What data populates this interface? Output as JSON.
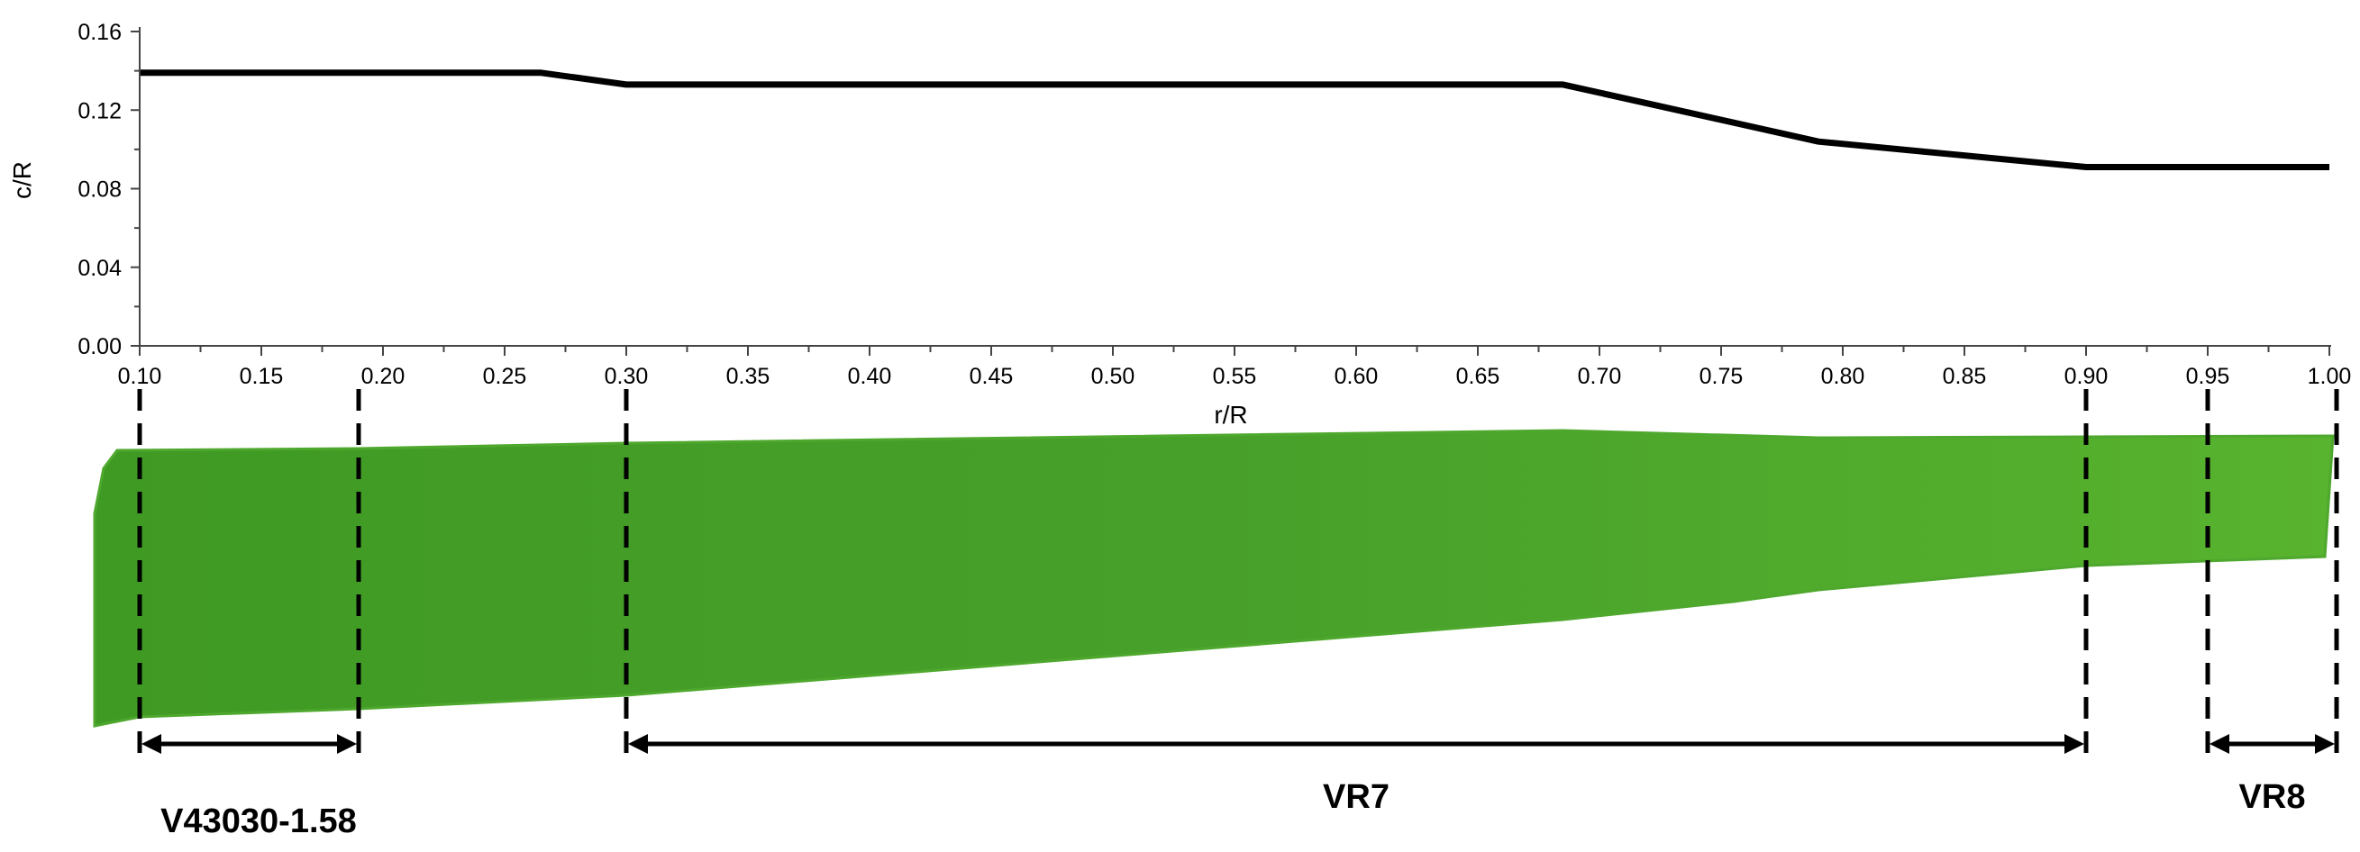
{
  "chart_data": {
    "type": "line",
    "xlabel": "r/R",
    "ylabel": "c/R",
    "xlim": [
      0.1,
      1.0
    ],
    "ylim": [
      0.0,
      0.16
    ],
    "x_ticks": [
      "0.10",
      "0.15",
      "0.20",
      "0.25",
      "0.30",
      "0.35",
      "0.40",
      "0.45",
      "0.50",
      "0.55",
      "0.60",
      "0.65",
      "0.70",
      "0.75",
      "0.80",
      "0.85",
      "0.90",
      "0.95",
      "1.00"
    ],
    "y_ticks": [
      "0.00",
      "0.04",
      "0.08",
      "0.12",
      "0.16"
    ],
    "grid": false,
    "series": [
      {
        "x": [
          0.1,
          0.265,
          0.3,
          0.685,
          0.79,
          0.9,
          1.0
        ],
        "y": [
          0.139,
          0.139,
          0.133,
          0.133,
          0.104,
          0.091,
          0.091
        ]
      }
    ]
  },
  "blade": {
    "color": "#4fa82e",
    "boundaries": [
      0.1,
      0.19,
      0.3,
      0.9,
      0.95,
      1.0
    ],
    "sections": [
      {
        "label": "V43030-1.58",
        "from": 0.1,
        "to": 0.19
      },
      {
        "label": "VR7",
        "from": 0.3,
        "to": 0.9
      },
      {
        "label": "VR8",
        "from": 0.95,
        "to": 1.0
      }
    ]
  }
}
